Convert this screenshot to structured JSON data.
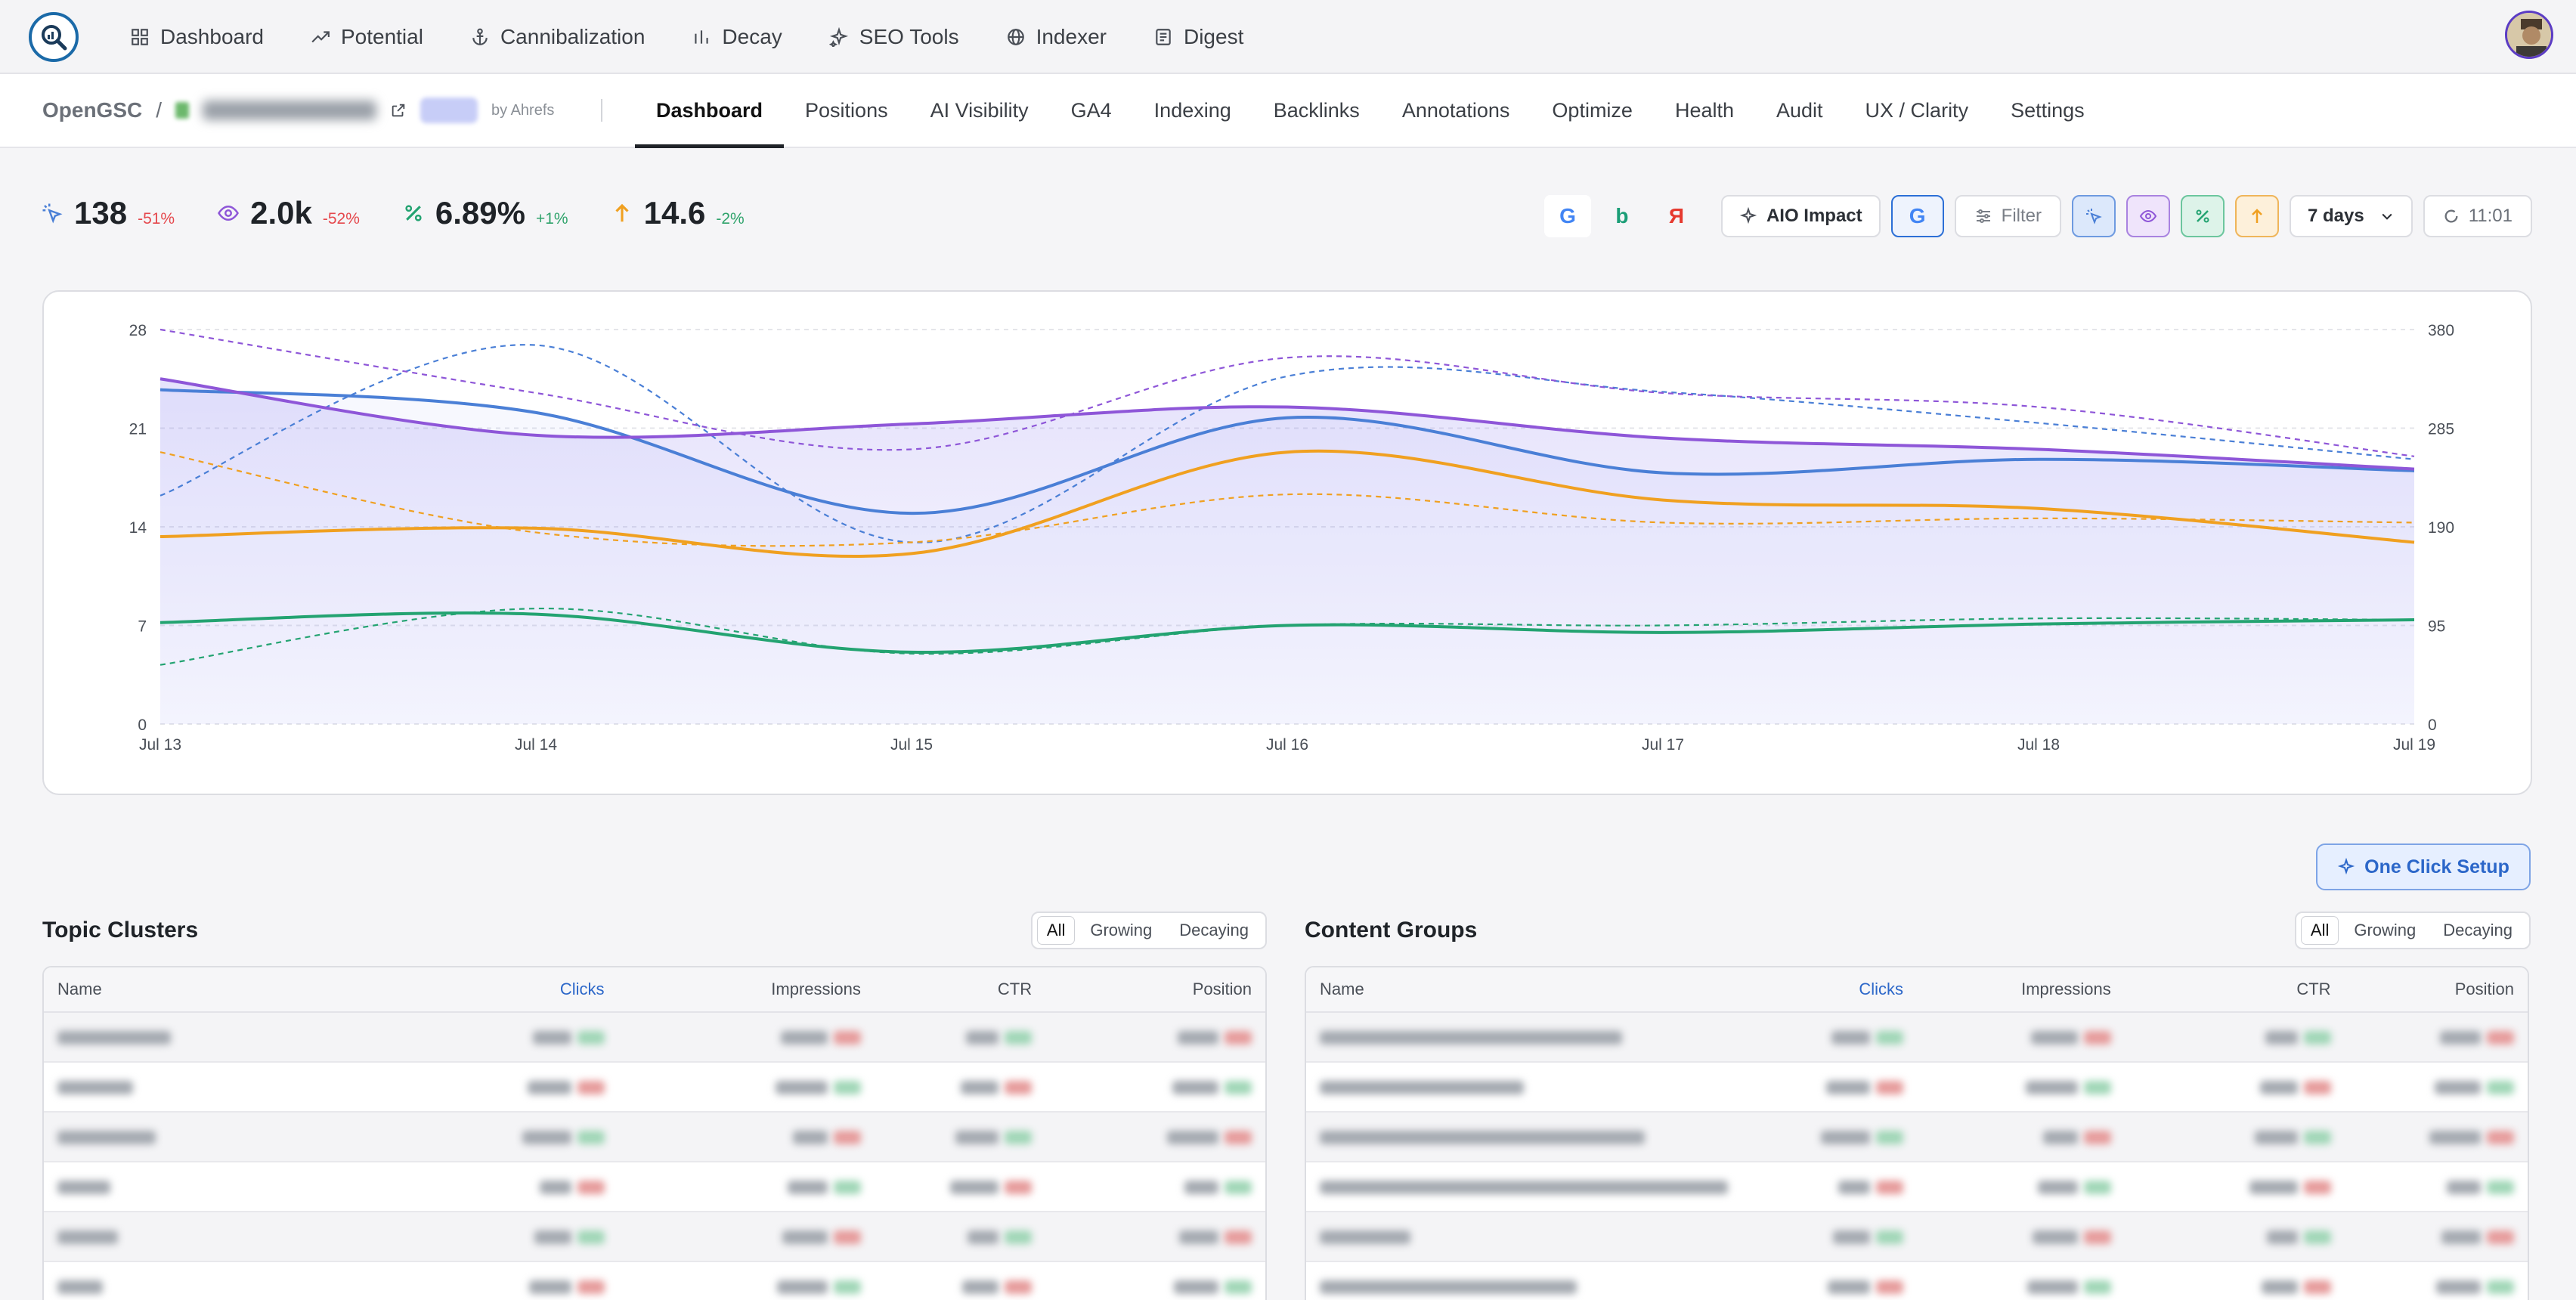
{
  "topnav": {
    "items": [
      {
        "label": "Dashboard",
        "icon": "grid-icon"
      },
      {
        "label": "Potential",
        "icon": "trending-up-icon"
      },
      {
        "label": "Cannibalization",
        "icon": "anchor-icon"
      },
      {
        "label": "Decay",
        "icon": "bar-chart-icon"
      },
      {
        "label": "SEO Tools",
        "icon": "sparkles-icon"
      },
      {
        "label": "Indexer",
        "icon": "globe-icon"
      },
      {
        "label": "Digest",
        "icon": "newspaper-icon"
      }
    ]
  },
  "breadcrumb": {
    "brand": "OpenGSC",
    "separator": "/",
    "by": "by Ahrefs"
  },
  "tabs": [
    "Dashboard",
    "Positions",
    "AI Visibility",
    "GA4",
    "Indexing",
    "Backlinks",
    "Annotations",
    "Optimize",
    "Health",
    "Audit",
    "UX / Clarity",
    "Settings"
  ],
  "active_tab": "Dashboard",
  "stats": [
    {
      "value": "138",
      "change": "-51%",
      "trend": "neg",
      "icon": "clicks-icon",
      "color": "#4a7fd6"
    },
    {
      "value": "2.0k",
      "change": "-52%",
      "trend": "neg",
      "icon": "eye-icon",
      "color": "#8e56d8"
    },
    {
      "value": "6.89%",
      "change": "+1%",
      "trend": "pos",
      "icon": "percent-icon",
      "color": "#23a371"
    },
    {
      "value": "14.6",
      "change": "-2%",
      "trend": "pos",
      "icon": "arrow-up-icon",
      "color": "#f0a020"
    }
  ],
  "toolbar": {
    "engines": [
      {
        "label": "G",
        "color": "#4285f4"
      },
      {
        "label": "b",
        "color": "#1b9e77"
      },
      {
        "label": "Я",
        "color": "#e6392f"
      }
    ],
    "aio_label": "AIO Impact",
    "filter_label": "Filter",
    "range_label": "7 days",
    "time_label": "11:01"
  },
  "chart_data": {
    "type": "line",
    "categories": [
      "Jul 13",
      "Jul 14",
      "Jul 15",
      "Jul 16",
      "Jul 17",
      "Jul 18",
      "Jul 19"
    ],
    "y_left": {
      "ticks": [
        "0",
        "7",
        "14",
        "21",
        "28"
      ],
      "range": [
        0,
        28
      ]
    },
    "y_right": {
      "ticks": [
        "0",
        "95",
        "190",
        "285",
        "380"
      ],
      "range": [
        0,
        380
      ]
    },
    "grid": true,
    "series": [
      {
        "metric": "clicks",
        "axis": "right",
        "color": "#4a7fd6",
        "values": [
          322,
          300,
          203,
          295,
          242,
          255,
          244
        ]
      },
      {
        "metric": "impressions",
        "axis": "left",
        "color": "#8e56d8",
        "values": [
          24.5,
          20.5,
          21.3,
          22.5,
          20.3,
          19.5,
          18.1
        ]
      },
      {
        "metric": "position",
        "axis": "left",
        "color": "#f0a020",
        "values": [
          13.3,
          13.9,
          12.1,
          19.3,
          15.9,
          15.3,
          12.9
        ]
      },
      {
        "metric": "ctr",
        "axis": "left",
        "color": "#23a371",
        "values": [
          7.2,
          7.8,
          5.1,
          7.0,
          6.5,
          7.1,
          7.4
        ]
      },
      {
        "metric": "clicks-prev",
        "axis": "right",
        "color": "#4a7fd6",
        "dashed": true,
        "values": [
          220,
          365,
          175,
          335,
          320,
          290,
          255
        ]
      },
      {
        "metric": "impressions-prev",
        "axis": "left",
        "color": "#8e56d8",
        "dashed": true,
        "values": [
          28.0,
          23.5,
          19.5,
          26.0,
          23.5,
          22.5,
          19.0
        ]
      },
      {
        "metric": "position-prev",
        "axis": "left",
        "color": "#f0a020",
        "dashed": true,
        "values": [
          19.3,
          13.6,
          12.9,
          16.3,
          14.3,
          14.6,
          14.3
        ]
      },
      {
        "metric": "ctr-prev",
        "axis": "left",
        "color": "#23a371",
        "dashed": true,
        "values": [
          4.2,
          8.2,
          5.0,
          7.0,
          7.0,
          7.5,
          7.4
        ]
      }
    ]
  },
  "setup_button": "One Click Setup",
  "panels": [
    {
      "title": "Topic Clusters",
      "filters": [
        "All",
        "Growing",
        "Decaying"
      ],
      "columns": [
        "Name",
        "Clicks",
        "Impressions",
        "CTR",
        "Position"
      ],
      "rows": 6
    },
    {
      "title": "Content Groups",
      "filters": [
        "All",
        "Growing",
        "Decaying"
      ],
      "columns": [
        "Name",
        "Clicks",
        "Impressions",
        "CTR",
        "Position"
      ],
      "rows": 6
    }
  ]
}
